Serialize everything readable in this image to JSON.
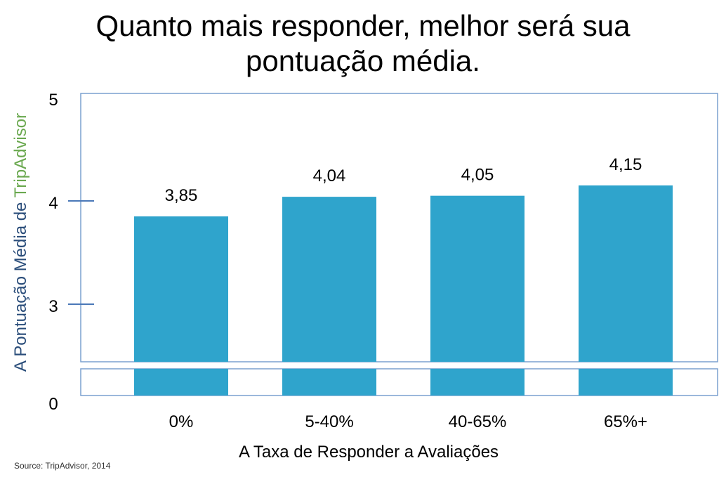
{
  "title_lines": [
    "Quanto mais responder, melhor será sua",
    "pontuação média."
  ],
  "source": "Source: TripAdvisor, 2014",
  "colors": {
    "bar": "#2fa4cc",
    "frame": "#7aa0cf",
    "tick": "#4a78b8",
    "axis_text": "#2a4d7a",
    "brand_green": "#6aa84f"
  },
  "chart_data": {
    "type": "bar",
    "title": "Quanto mais responder, melhor será sua pontuação média.",
    "categories": [
      "0%",
      "5-40%",
      "40-65%",
      "65%+"
    ],
    "values": [
      3.85,
      4.04,
      4.05,
      4.15
    ],
    "value_labels": [
      "3,85",
      "4,04",
      "4,05",
      "4,15"
    ],
    "xlabel": "A Taxa de Responder a Avaliações",
    "ylabel_prefix": "A Pontuação Média de ",
    "ylabel_brand": "TripAdvisor",
    "yticks": [
      "0",
      "3",
      "4",
      "5"
    ],
    "ylim": [
      0,
      5
    ],
    "broken_axis": true,
    "grid": false,
    "legend": "none"
  }
}
